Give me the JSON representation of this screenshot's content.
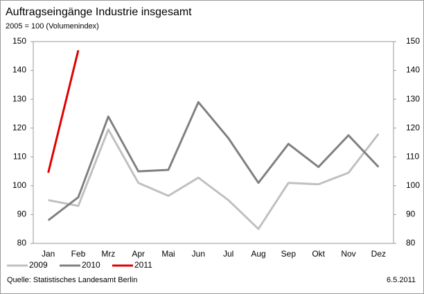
{
  "chart_data": {
    "type": "line",
    "title": "Auftragseingänge Industrie insgesamt",
    "subtitle": "2005 = 100 (Volumenindex)",
    "categories": [
      "Jan",
      "Feb",
      "Mrz",
      "Apr",
      "Mai",
      "Jun",
      "Jul",
      "Aug",
      "Sep",
      "Okt",
      "Nov",
      "Dez"
    ],
    "series": [
      {
        "name": "2009",
        "color": "#c0c0c0",
        "values": [
          95,
          93,
          119.5,
          101,
          96.5,
          102.8,
          95,
          85,
          101,
          100.5,
          104.5,
          118
        ]
      },
      {
        "name": "2010",
        "color": "#808080",
        "values": [
          88,
          96,
          124,
          105,
          105.5,
          129,
          116.5,
          101,
          114.5,
          106.5,
          117.5,
          106.5
        ]
      },
      {
        "name": "2011",
        "color": "#e00000",
        "values": [
          104.5,
          147,
          null,
          null,
          null,
          null,
          null,
          null,
          null,
          null,
          null,
          null
        ]
      }
    ],
    "ylim": [
      80,
      150
    ],
    "yticks": [
      80,
      90,
      100,
      110,
      120,
      130,
      140,
      150
    ],
    "y2lim": [
      80,
      150
    ],
    "y2ticks": [
      80,
      90,
      100,
      110,
      120,
      130,
      140,
      150
    ],
    "source": "Quelle: Statistisches Landesamt Berlin",
    "date": "6.5.2011"
  }
}
